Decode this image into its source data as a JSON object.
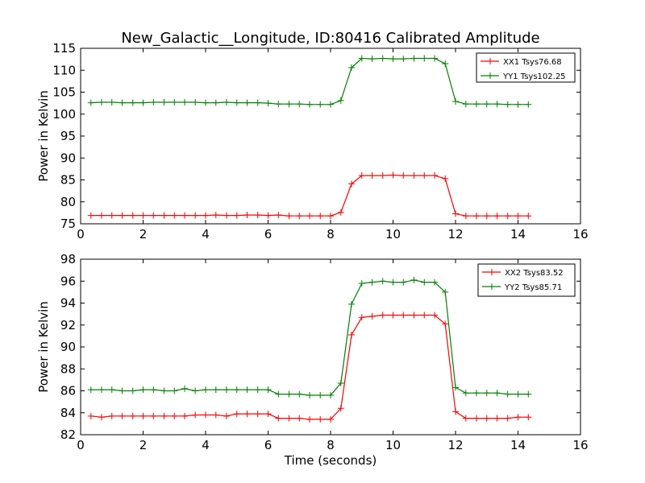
{
  "title": "New_Galactic__Longitude, ID:80416 Calibrated Amplitude",
  "colors": {
    "red": "#ff0000",
    "green": "#008000"
  },
  "chart_data": [
    {
      "type": "line",
      "ylabel": "Power in Kelvin",
      "xlabel": "",
      "xlim": [
        0,
        16
      ],
      "ylim": [
        75,
        115
      ],
      "xticks": [
        0,
        2,
        4,
        6,
        8,
        10,
        12,
        14,
        16
      ],
      "yticks": [
        75,
        80,
        85,
        90,
        95,
        100,
        105,
        110,
        115
      ],
      "legend_placement": "top-right",
      "x": [
        0.33,
        0.67,
        1.0,
        1.33,
        1.67,
        2.0,
        2.33,
        2.67,
        3.0,
        3.33,
        3.67,
        4.0,
        4.33,
        4.67,
        5.0,
        5.33,
        5.67,
        6.0,
        6.33,
        6.67,
        7.0,
        7.33,
        7.67,
        8.0,
        8.33,
        8.67,
        9.0,
        9.33,
        9.67,
        10.0,
        10.33,
        10.67,
        11.0,
        11.33,
        11.67,
        12.0,
        12.33,
        12.67,
        13.0,
        13.33,
        13.67,
        14.0,
        14.33
      ],
      "series": [
        {
          "name": "XX1 Tsys76.68",
          "color": "#ff0000",
          "values": [
            76.9,
            76.9,
            76.9,
            76.9,
            76.9,
            76.9,
            76.9,
            76.9,
            76.9,
            76.9,
            76.9,
            76.9,
            77.0,
            76.9,
            76.9,
            77.0,
            77.0,
            76.9,
            77.0,
            76.8,
            76.8,
            76.8,
            76.8,
            76.8,
            77.6,
            84.1,
            86.0,
            86.0,
            86.0,
            86.1,
            86.0,
            86.0,
            86.0,
            86.0,
            85.3,
            77.3,
            76.8,
            76.8,
            76.8,
            76.8,
            76.8,
            76.8,
            76.8
          ]
        },
        {
          "name": "YY1 Tsys102.25",
          "color": "#008000",
          "values": [
            102.6,
            102.7,
            102.7,
            102.6,
            102.6,
            102.6,
            102.7,
            102.7,
            102.7,
            102.7,
            102.7,
            102.6,
            102.6,
            102.7,
            102.6,
            102.6,
            102.6,
            102.5,
            102.3,
            102.3,
            102.3,
            102.2,
            102.2,
            102.2,
            103.1,
            110.6,
            112.7,
            112.6,
            112.7,
            112.6,
            112.6,
            112.7,
            112.7,
            112.7,
            111.5,
            102.9,
            102.3,
            102.3,
            102.3,
            102.3,
            102.2,
            102.2,
            102.2
          ]
        }
      ]
    },
    {
      "type": "line",
      "ylabel": "Power in Kelvin",
      "xlabel": "Time (seconds)",
      "xlim": [
        0,
        16
      ],
      "ylim": [
        82,
        98
      ],
      "xticks": [
        0,
        2,
        4,
        6,
        8,
        10,
        12,
        14,
        16
      ],
      "yticks": [
        82,
        84,
        86,
        88,
        90,
        92,
        94,
        96,
        98
      ],
      "legend_placement": "top-right",
      "x": [
        0.33,
        0.67,
        1.0,
        1.33,
        1.67,
        2.0,
        2.33,
        2.67,
        3.0,
        3.33,
        3.67,
        4.0,
        4.33,
        4.67,
        5.0,
        5.33,
        5.67,
        6.0,
        6.33,
        6.67,
        7.0,
        7.33,
        7.67,
        8.0,
        8.33,
        8.67,
        9.0,
        9.33,
        9.67,
        10.0,
        10.33,
        10.67,
        11.0,
        11.33,
        11.67,
        12.0,
        12.33,
        12.67,
        13.0,
        13.33,
        13.67,
        14.0,
        14.33
      ],
      "series": [
        {
          "name": "XX2 Tsys83.52",
          "color": "#ff0000",
          "values": [
            83.7,
            83.6,
            83.7,
            83.7,
            83.7,
            83.7,
            83.7,
            83.7,
            83.7,
            83.7,
            83.8,
            83.8,
            83.8,
            83.7,
            83.9,
            83.9,
            83.9,
            83.9,
            83.5,
            83.5,
            83.5,
            83.4,
            83.4,
            83.4,
            84.4,
            91.1,
            92.7,
            92.8,
            92.9,
            92.9,
            92.9,
            92.9,
            92.9,
            92.9,
            92.1,
            84.1,
            83.5,
            83.5,
            83.5,
            83.5,
            83.5,
            83.6,
            83.6
          ]
        },
        {
          "name": "YY2 Tsys85.71",
          "color": "#008000",
          "values": [
            86.1,
            86.1,
            86.1,
            86.0,
            86.0,
            86.1,
            86.1,
            86.0,
            86.0,
            86.2,
            86.0,
            86.1,
            86.1,
            86.1,
            86.1,
            86.1,
            86.1,
            86.1,
            85.7,
            85.7,
            85.7,
            85.6,
            85.6,
            85.6,
            86.7,
            93.9,
            95.8,
            95.9,
            96.0,
            95.9,
            95.9,
            96.1,
            95.9,
            95.9,
            95.0,
            86.3,
            85.8,
            85.8,
            85.8,
            85.8,
            85.7,
            85.7,
            85.7
          ]
        }
      ]
    }
  ]
}
